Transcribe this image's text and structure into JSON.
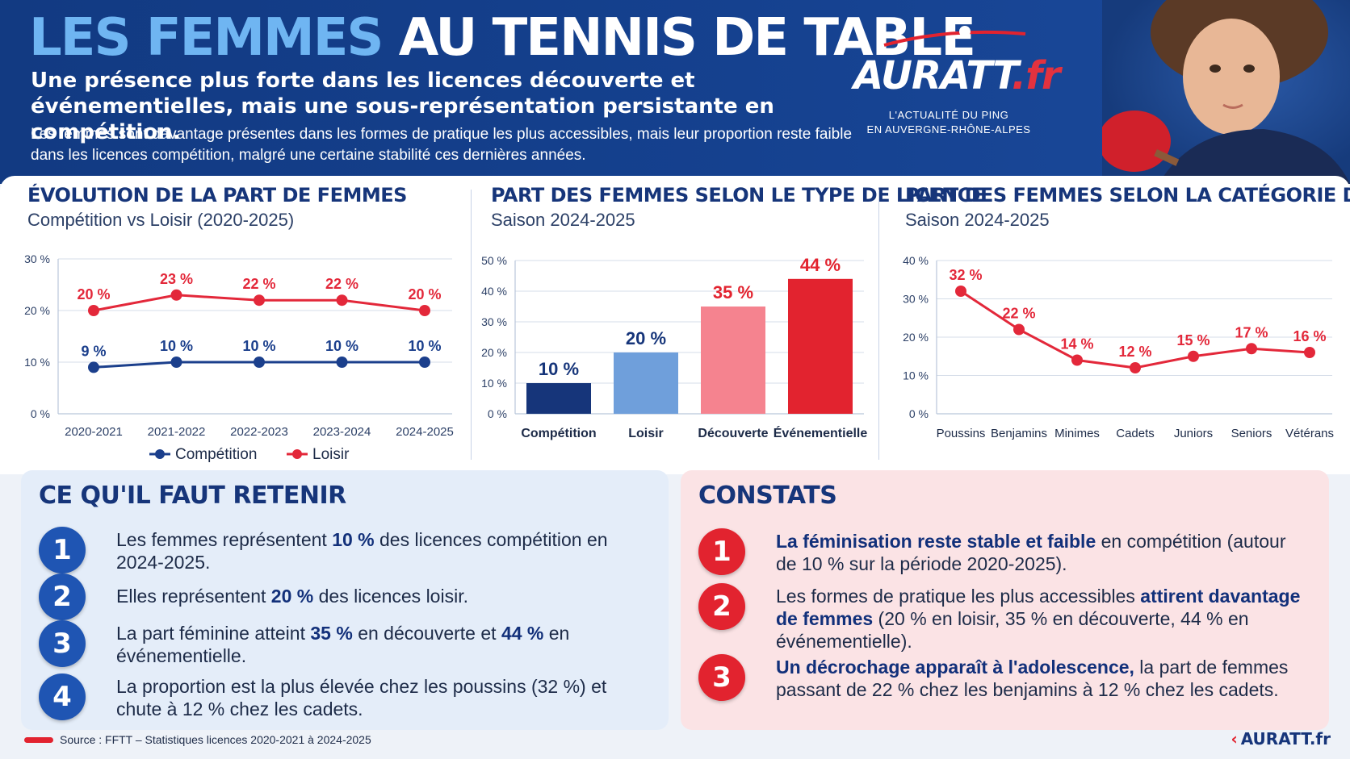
{
  "header": {
    "title_part1": "LES FEMMES",
    "title_part2": "AU TENNIS DE TABLE",
    "subtitle": "Une présence plus forte dans les licences découverte et événementielles, mais une sous-représentation persistante en compétition.",
    "intro": "Les femmes sont davantage présentes dans les formes de pratique les plus accessibles, mais leur proportion reste faible dans les licences compétition, malgré une certaine stabilité ces dernières années."
  },
  "logo": {
    "name": "AURATT",
    "suffix": ".fr",
    "tagline_line1": "L'ACTUALITÉ DU PING",
    "tagline_line2": "EN AUVERGNE-RHÔNE-ALPES"
  },
  "colors": {
    "navy": "#16357a",
    "red": "#e2232f",
    "light_blue": "#6f9fdb",
    "pink": "#f5838f",
    "competition_line": "#1b3f8c",
    "loisir_line": "#e3283a"
  },
  "chart_data": [
    {
      "type": "line",
      "title": "ÉVOLUTION DE LA PART DE FEMMES",
      "subtitle": "Compétition vs Loisir (2020-2025)",
      "categories": [
        "2020-2021",
        "2021-2022",
        "2022-2023",
        "2023-2024",
        "2024-2025"
      ],
      "series": [
        {
          "name": "Compétition",
          "values": [
            9,
            10,
            10,
            10,
            10
          ],
          "labels": [
            "9 %",
            "10 %",
            "10 %",
            "10 %",
            "10 %"
          ],
          "color": "#1b3f8c"
        },
        {
          "name": "Loisir",
          "values": [
            20,
            23,
            22,
            22,
            20
          ],
          "labels": [
            "20 %",
            "23 %",
            "22 %",
            "22 %",
            "20 %"
          ],
          "color": "#e3283a"
        }
      ],
      "yticks": [
        "0 %",
        "10 %",
        "20 %",
        "30 %"
      ],
      "ylim": [
        0,
        30
      ],
      "grid": true,
      "legend": "bottom"
    },
    {
      "type": "bar",
      "title": "PART DES FEMMES SELON LE TYPE DE LICENCE",
      "subtitle": "Saison 2024-2025",
      "categories": [
        "Compétition",
        "Loisir",
        "Découverte",
        "Événementielle"
      ],
      "values": [
        10,
        20,
        35,
        44
      ],
      "labels": [
        "10 %",
        "20 %",
        "35 %",
        "44 %"
      ],
      "colors": [
        "#16357a",
        "#6f9fdb",
        "#f5838f",
        "#e2232f"
      ],
      "label_colors": [
        "#16357a",
        "#16357a",
        "#e2232f",
        "#e2232f"
      ],
      "yticks": [
        "0 %",
        "10 %",
        "20 %",
        "30 %",
        "40 %",
        "50 %"
      ],
      "ylim": [
        0,
        50
      ],
      "grid": true
    },
    {
      "type": "line",
      "title": "PART DES FEMMES SELON LA CATÉGORIE D'ÂGE",
      "subtitle": "Saison 2024-2025",
      "categories": [
        "Poussins",
        "Benjamins",
        "Minimes",
        "Cadets",
        "Juniors",
        "Seniors",
        "Vétérans"
      ],
      "values": [
        32,
        22,
        14,
        12,
        15,
        17,
        16
      ],
      "labels": [
        "32 %",
        "22 %",
        "14 %",
        "12 %",
        "15 %",
        "17 %",
        "16 %"
      ],
      "color": "#e3283a",
      "yticks": [
        "0 %",
        "10 %",
        "20 %",
        "30 %",
        "40 %"
      ],
      "ylim": [
        0,
        40
      ],
      "grid": true
    }
  ],
  "retenir": {
    "title": "CE QU'IL FAUT RETENIR",
    "items": [
      {
        "num": "1",
        "pre": "Les femmes représentent ",
        "bold": "10 %",
        "post": " des licences compétition en 2024-2025."
      },
      {
        "num": "2",
        "pre": "Elles représentent ",
        "bold": "20 %",
        "post": " des licences loisir."
      },
      {
        "num": "3",
        "pre": "La part féminine atteint ",
        "bold": "35 %",
        "mid": " en découverte et ",
        "bold2": "44 %",
        "post": " en événementielle."
      },
      {
        "num": "4",
        "pre": "La proportion est la plus élevée chez les poussins (32 %) et chute à 12 % chez les cadets."
      }
    ]
  },
  "constats": {
    "title": "CONSTATS",
    "items": [
      {
        "num": "1",
        "bold": "La féminisation reste stable et faible",
        "post": " en compétition (autour de 10 % sur la période 2020-2025)."
      },
      {
        "num": "2",
        "pre": "Les formes de pratique les plus accessibles ",
        "bold": "attirent davantage de femmes",
        "post": " (20 % en loisir, 35 % en découverte, 44 % en événementielle)."
      },
      {
        "num": "3",
        "bold": "Un décrochage apparaît à l'adolescence,",
        "post": " la part de femmes passant de 22 % chez les benjamins à 12 % chez les cadets."
      }
    ]
  },
  "footer": {
    "source": "Source : FFTT – Statistiques licences 2020-2021 à 2024-2025",
    "logo": "AURATT.fr",
    "logo_arrow": "‹"
  }
}
